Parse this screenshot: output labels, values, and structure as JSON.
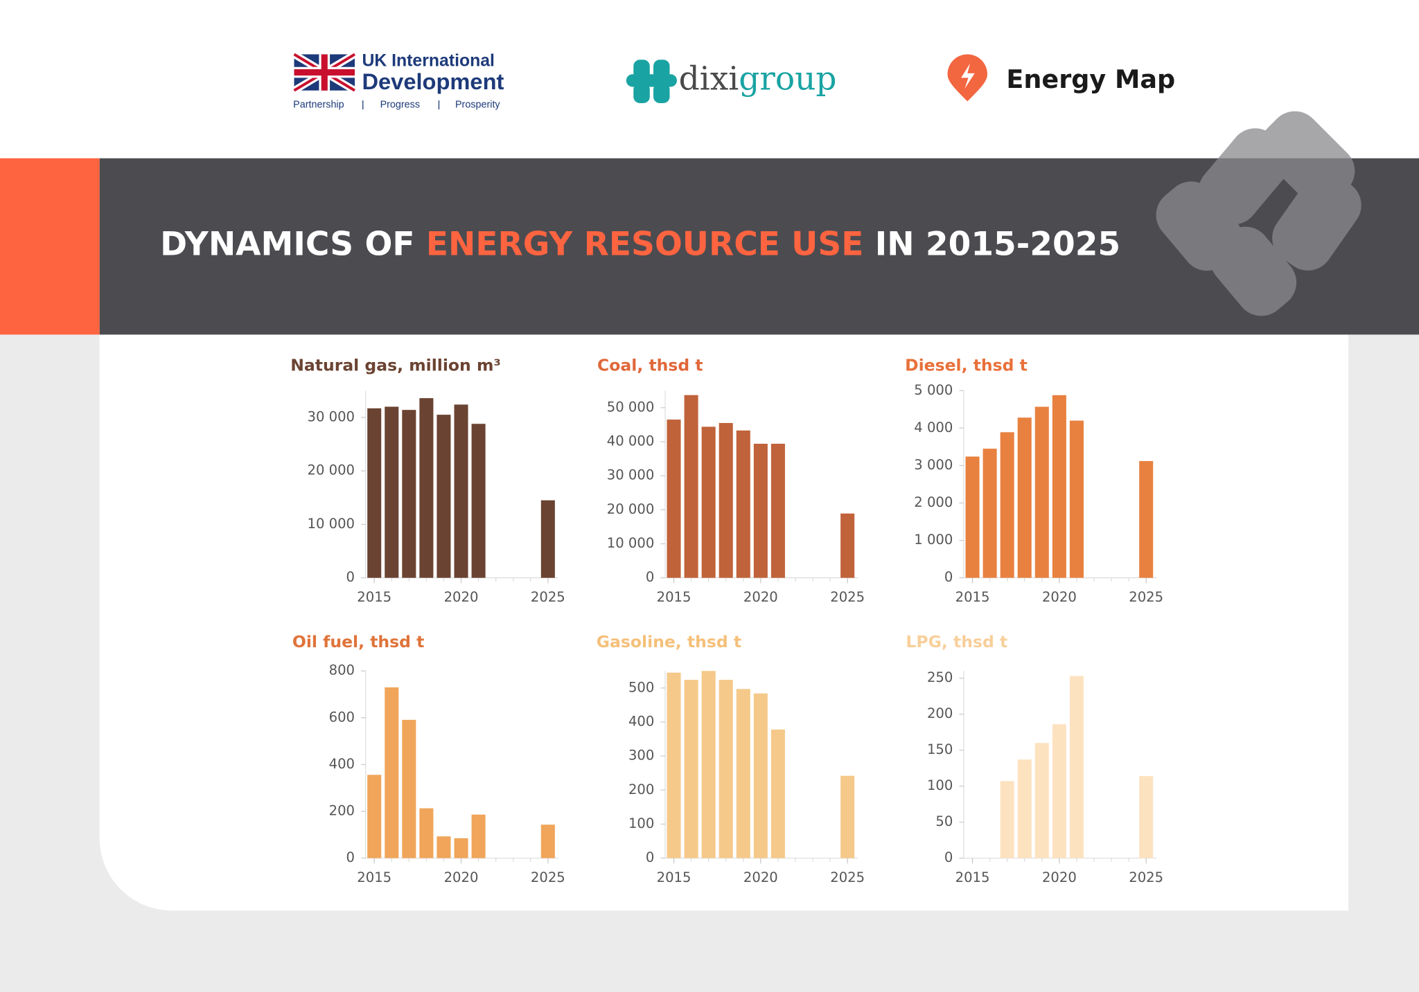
{
  "header": {
    "uk_logo": {
      "line1": "UK International",
      "line2": "Development",
      "tagline": [
        "Partnership",
        "Progress",
        "Prosperity"
      ]
    },
    "dixi_logo": {
      "part1": "dixi",
      "part2": "group"
    },
    "energy_map_logo": "Energy Map"
  },
  "banner": {
    "title_start": "DYNAMICS OF ",
    "title_highlight": "ENERGY RESOURCE USE",
    "title_end": " IN 2015-2025"
  },
  "chart_data": [
    {
      "type": "bar",
      "title": "Natural gas, million m³",
      "title_color": "#6b4332",
      "color": "#6b4332",
      "x": [
        2015,
        2016,
        2017,
        2018,
        2019,
        2020,
        2021,
        2025
      ],
      "values": [
        31700,
        32000,
        31400,
        33600,
        30500,
        32400,
        28800,
        14500
      ],
      "xlim": [
        2014.5,
        2025.6
      ],
      "xticks": [
        2015,
        2020,
        2025
      ],
      "ylim": [
        0,
        35000
      ],
      "yticks": [
        0,
        {
          "value": 10000,
          "label": "10 000"
        },
        {
          "value": 20000,
          "label": "20 000"
        },
        {
          "value": 30000,
          "label": "30 000"
        }
      ]
    },
    {
      "type": "bar",
      "title": "Coal, thsd t",
      "title_color": "#e0683a",
      "color": "#c0623a",
      "x": [
        2015,
        2016,
        2017,
        2018,
        2019,
        2020,
        2021,
        2025
      ],
      "values": [
        46500,
        53700,
        44400,
        45500,
        43300,
        39400,
        39400,
        18900
      ],
      "xlim": [
        2014.5,
        2025.6
      ],
      "xticks": [
        2015,
        2020,
        2025
      ],
      "ylim": [
        0,
        55000
      ],
      "yticks": [
        0,
        {
          "value": 10000,
          "label": "10 000"
        },
        {
          "value": 20000,
          "label": "20 000"
        },
        {
          "value": 30000,
          "label": "30 000"
        },
        {
          "value": 40000,
          "label": "40 000"
        },
        {
          "value": 50000,
          "label": "50 000"
        }
      ]
    },
    {
      "type": "bar",
      "title": "Diesel, thsd t",
      "title_color": "#e8703a",
      "color": "#e8813f",
      "x": [
        2015,
        2016,
        2017,
        2018,
        2019,
        2020,
        2021,
        2025
      ],
      "values": [
        3240,
        3450,
        3890,
        4280,
        4570,
        4880,
        4200,
        3120
      ],
      "xlim": [
        2014.5,
        2025.6
      ],
      "xticks": [
        2015,
        2020,
        2025
      ],
      "ylim": [
        0,
        5000
      ],
      "yticks": [
        0,
        {
          "value": 1000,
          "label": "1 000"
        },
        {
          "value": 2000,
          "label": "2 000"
        },
        {
          "value": 3000,
          "label": "3 000"
        },
        {
          "value": 4000,
          "label": "4 000"
        },
        {
          "value": 5000,
          "label": "5 000"
        }
      ]
    },
    {
      "type": "bar",
      "title": "Oil fuel, thsd t",
      "title_color": "#e0733a",
      "color": "#f0a55a",
      "x": [
        2015,
        2016,
        2017,
        2018,
        2019,
        2020,
        2021,
        2025
      ],
      "values": [
        356,
        730,
        591,
        213,
        93,
        85,
        186,
        143
      ],
      "xlim": [
        2014.5,
        2025.6
      ],
      "xticks": [
        2015,
        2020,
        2025
      ],
      "ylim": [
        0,
        800
      ],
      "yticks": [
        0,
        200,
        400,
        600,
        800
      ]
    },
    {
      "type": "bar",
      "title": "Gasoline, thsd t",
      "title_color": "#f5c07a",
      "color": "#f5c98a",
      "x": [
        2015,
        2016,
        2017,
        2018,
        2019,
        2020,
        2021,
        2025
      ],
      "values": [
        545,
        524,
        550,
        524,
        497,
        484,
        378,
        242
      ],
      "xlim": [
        2014.5,
        2025.6
      ],
      "xticks": [
        2015,
        2020,
        2025
      ],
      "ylim": [
        0,
        550
      ],
      "yticks": [
        0,
        100,
        200,
        300,
        400,
        500
      ]
    },
    {
      "type": "bar",
      "title": "LPG, thsd t",
      "title_color": "#f8cf9a",
      "color": "#fde2c0",
      "x": [
        2015,
        2016,
        2017,
        2018,
        2019,
        2020,
        2021,
        2025
      ],
      "values": [
        null,
        null,
        107,
        137,
        160,
        186,
        253,
        114
      ],
      "xlim": [
        2014.5,
        2025.6
      ],
      "xticks": [
        2015,
        2020,
        2025
      ],
      "ylim": [
        0,
        260
      ],
      "yticks": [
        0,
        50,
        100,
        150,
        200,
        250
      ]
    }
  ]
}
